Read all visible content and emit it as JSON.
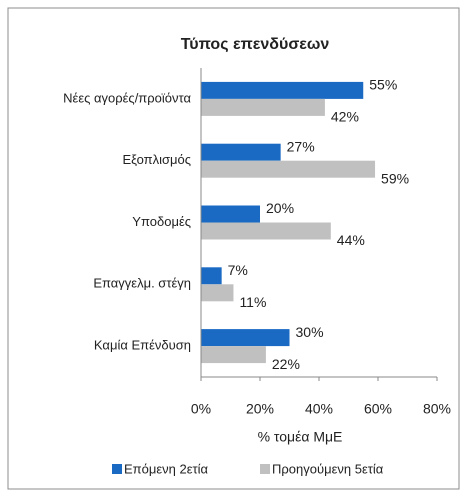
{
  "chart_data": {
    "type": "hbar",
    "title": "Τύπος επενδύσεων",
    "categories": [
      "Νέες αγορές/προϊόντα",
      "Εξοπλισμός",
      "Υποδομές",
      "Επαγγελμ. στέγη",
      "Καμία Επένδυση"
    ],
    "series": [
      {
        "name": "Επόμενη 2ετία",
        "color": "#1a6ac4",
        "values": [
          55,
          27,
          20,
          7,
          30
        ],
        "value_labels": [
          "55%",
          "27%",
          "20%",
          "7%",
          "30%"
        ]
      },
      {
        "name": "Προηγούμενη 5ετία",
        "color": "#c0c0c0",
        "values": [
          42,
          59,
          44,
          11,
          22
        ],
        "value_labels": [
          "42%",
          "59%",
          "44%",
          "11%",
          "22%"
        ]
      }
    ],
    "xlim": [
      0,
      80
    ],
    "xticks": [
      {
        "value": 0,
        "label": "0%"
      },
      {
        "value": 20,
        "label": "20%"
      },
      {
        "value": 40,
        "label": "40%"
      },
      {
        "value": 60,
        "label": "60%"
      },
      {
        "value": 80,
        "label": "80%"
      }
    ],
    "xlabel": "% τομέα ΜμΕ",
    "legend": "bottom"
  }
}
